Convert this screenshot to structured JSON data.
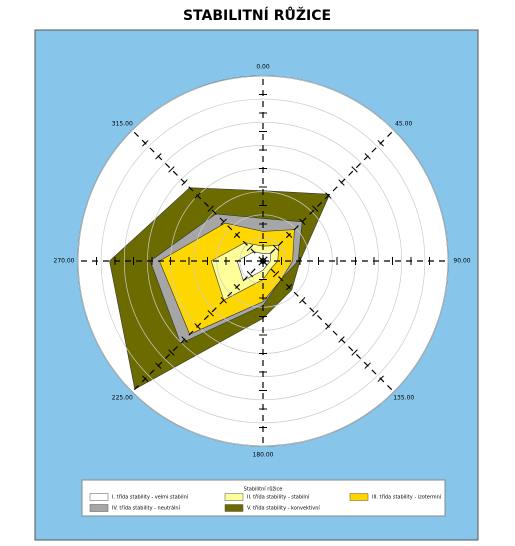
{
  "chart_data": {
    "type": "radar",
    "title": "STABILITNÍ RŮŽICE",
    "categories": [
      "0.00",
      "45.00",
      "90.00",
      "135.00",
      "180.00",
      "225.00",
      "270.00",
      "315.00"
    ],
    "rlim": [
      0,
      100
    ],
    "rticks": [
      12.5,
      25,
      37.5,
      50,
      62.5,
      75,
      87.5,
      100
    ],
    "legend_title": "Stabilitní růžice",
    "series": [
      {
        "name": "I. třída stability - velmi stabilní",
        "color": "#ffffff",
        "values": [
          4,
          6,
          4,
          3,
          5,
          15,
          14,
          7
        ]
      },
      {
        "name": "II. třída stability - stabilní",
        "color": "#ffff99",
        "values": [
          8,
          12,
          8,
          6,
          10,
          30,
          28,
          14
        ]
      },
      {
        "name": "III. třída stability - izotermní",
        "color": "#ffd700",
        "values": [
          16,
          24,
          16,
          14,
          22,
          56,
          56,
          29
        ]
      },
      {
        "name": "IV. třída stability - neutrální",
        "color": "#a6a6a6",
        "values": [
          23,
          30,
          19,
          14,
          24,
          63,
          61,
          36
        ]
      },
      {
        "name": "V. třída stability - konvektivní",
        "color": "#6b6b00",
        "values": [
          38,
          51,
          20,
          22,
          31,
          98,
          83,
          56
        ]
      }
    ]
  }
}
